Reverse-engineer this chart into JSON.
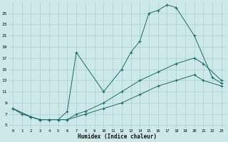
{
  "xlabel": "Humidex (Indice chaleur)",
  "background_color": "#cce8e8",
  "line_color": "#1a6b6b",
  "grid_color": "#aacfcf",
  "xlim": [
    -0.5,
    23.5
  ],
  "ylim": [
    4.5,
    27
  ],
  "xticks": [
    0,
    1,
    2,
    3,
    4,
    5,
    6,
    7,
    8,
    9,
    10,
    11,
    12,
    13,
    14,
    15,
    16,
    17,
    18,
    19,
    20,
    21,
    22,
    23
  ],
  "yticks": [
    5,
    7,
    9,
    11,
    13,
    15,
    17,
    19,
    21,
    23,
    25
  ],
  "line1_x": [
    0,
    1,
    2,
    3,
    4,
    5,
    6,
    7,
    10,
    12,
    13,
    14,
    15,
    16,
    17,
    18,
    20,
    22,
    23
  ],
  "line1_y": [
    8,
    7,
    6.5,
    6,
    6,
    6,
    7.5,
    18,
    11,
    15,
    18,
    20,
    25,
    25.5,
    26.5,
    26,
    21,
    13.5,
    12.5
  ],
  "line2_x": [
    0,
    2,
    3,
    4,
    5,
    6,
    7,
    8,
    10,
    12,
    14,
    16,
    18,
    20,
    21,
    23
  ],
  "line2_y": [
    8,
    6.5,
    6,
    6,
    6,
    6,
    7,
    7.5,
    9,
    11,
    13,
    14.5,
    16,
    17,
    16,
    13
  ],
  "line3_x": [
    0,
    2,
    3,
    4,
    5,
    6,
    8,
    10,
    12,
    14,
    16,
    18,
    20,
    21,
    23
  ],
  "line3_y": [
    8,
    6.5,
    6,
    6,
    6,
    6,
    7,
    8,
    9,
    10.5,
    12,
    13,
    14,
    13,
    12
  ]
}
